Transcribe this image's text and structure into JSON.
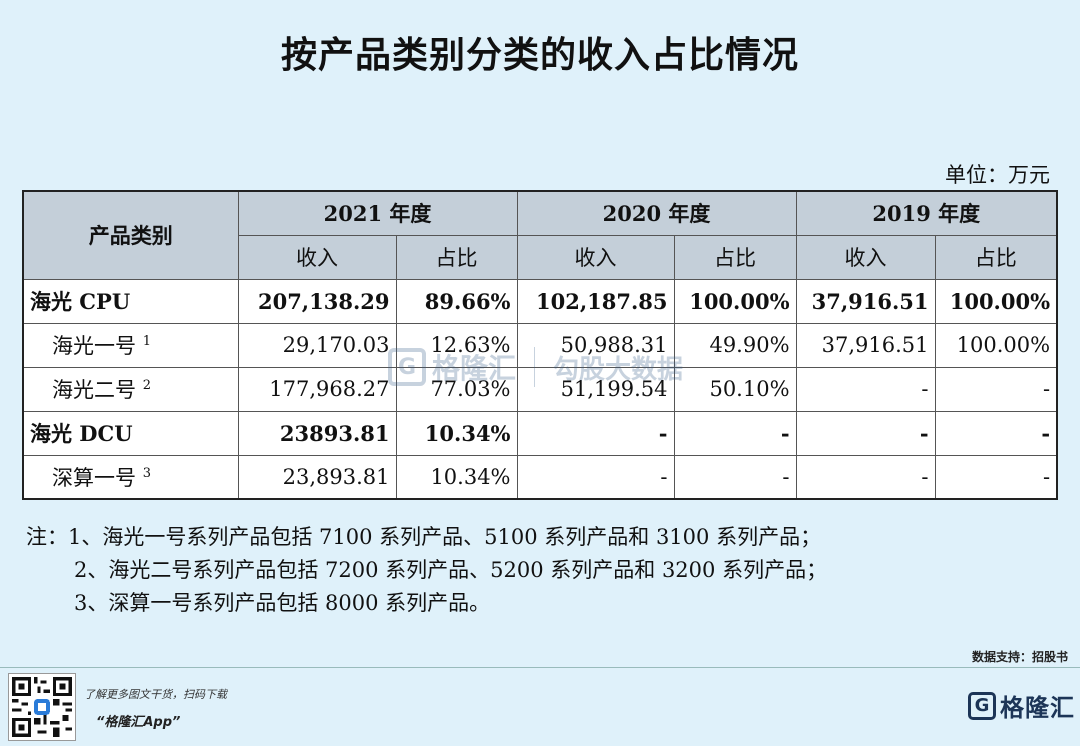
{
  "title": "按产品类别分类的收入占比情况",
  "unit": "单位：万元",
  "table": {
    "category_header": "产品类别",
    "years": [
      "2021 年度",
      "2020 年度",
      "2019 年度"
    ],
    "sub_headers": [
      "收入",
      "占比"
    ],
    "rows": [
      {
        "name": "海光 CPU",
        "sup": "",
        "values": [
          "207,138.29",
          "89.66%",
          "102,187.85",
          "100.00%",
          "37,916.51",
          "100.00%"
        ]
      },
      {
        "name": "海光一号",
        "sup": "1",
        "values": [
          "29,170.03",
          "12.63%",
          "50,988.31",
          "49.90%",
          "37,916.51",
          "100.00%"
        ]
      },
      {
        "name": "海光二号",
        "sup": "2",
        "values": [
          "177,968.27",
          "77.03%",
          "51,199.54",
          "50.10%",
          "-",
          "-"
        ]
      },
      {
        "name": "海光 DCU",
        "sup": "",
        "values": [
          "23893.81",
          "10.34%",
          "-",
          "-",
          "-",
          "-"
        ]
      },
      {
        "name": "深算一号",
        "sup": "3",
        "values": [
          "23,893.81",
          "10.34%",
          "-",
          "-",
          "-",
          "-"
        ]
      }
    ]
  },
  "notes": [
    "注：1、海光一号系列产品包括 7100 系列产品、5100 系列产品和 3100 系列产品；",
    "2、海光二号系列产品包括 7200 系列产品、5200 系列产品和 3200 系列产品；",
    "3、深算一号系列产品包括 8000 系列产品。"
  ],
  "source": "数据支持：招股书",
  "footer": {
    "line1": "了解更多图文干货，扫码下载",
    "line2": "“格隆汇App”",
    "brand_letter": "G",
    "brand_name": "格隆汇"
  },
  "watermark": {
    "letter": "G",
    "text1": "格隆汇",
    "text2": "勾股大数据"
  }
}
